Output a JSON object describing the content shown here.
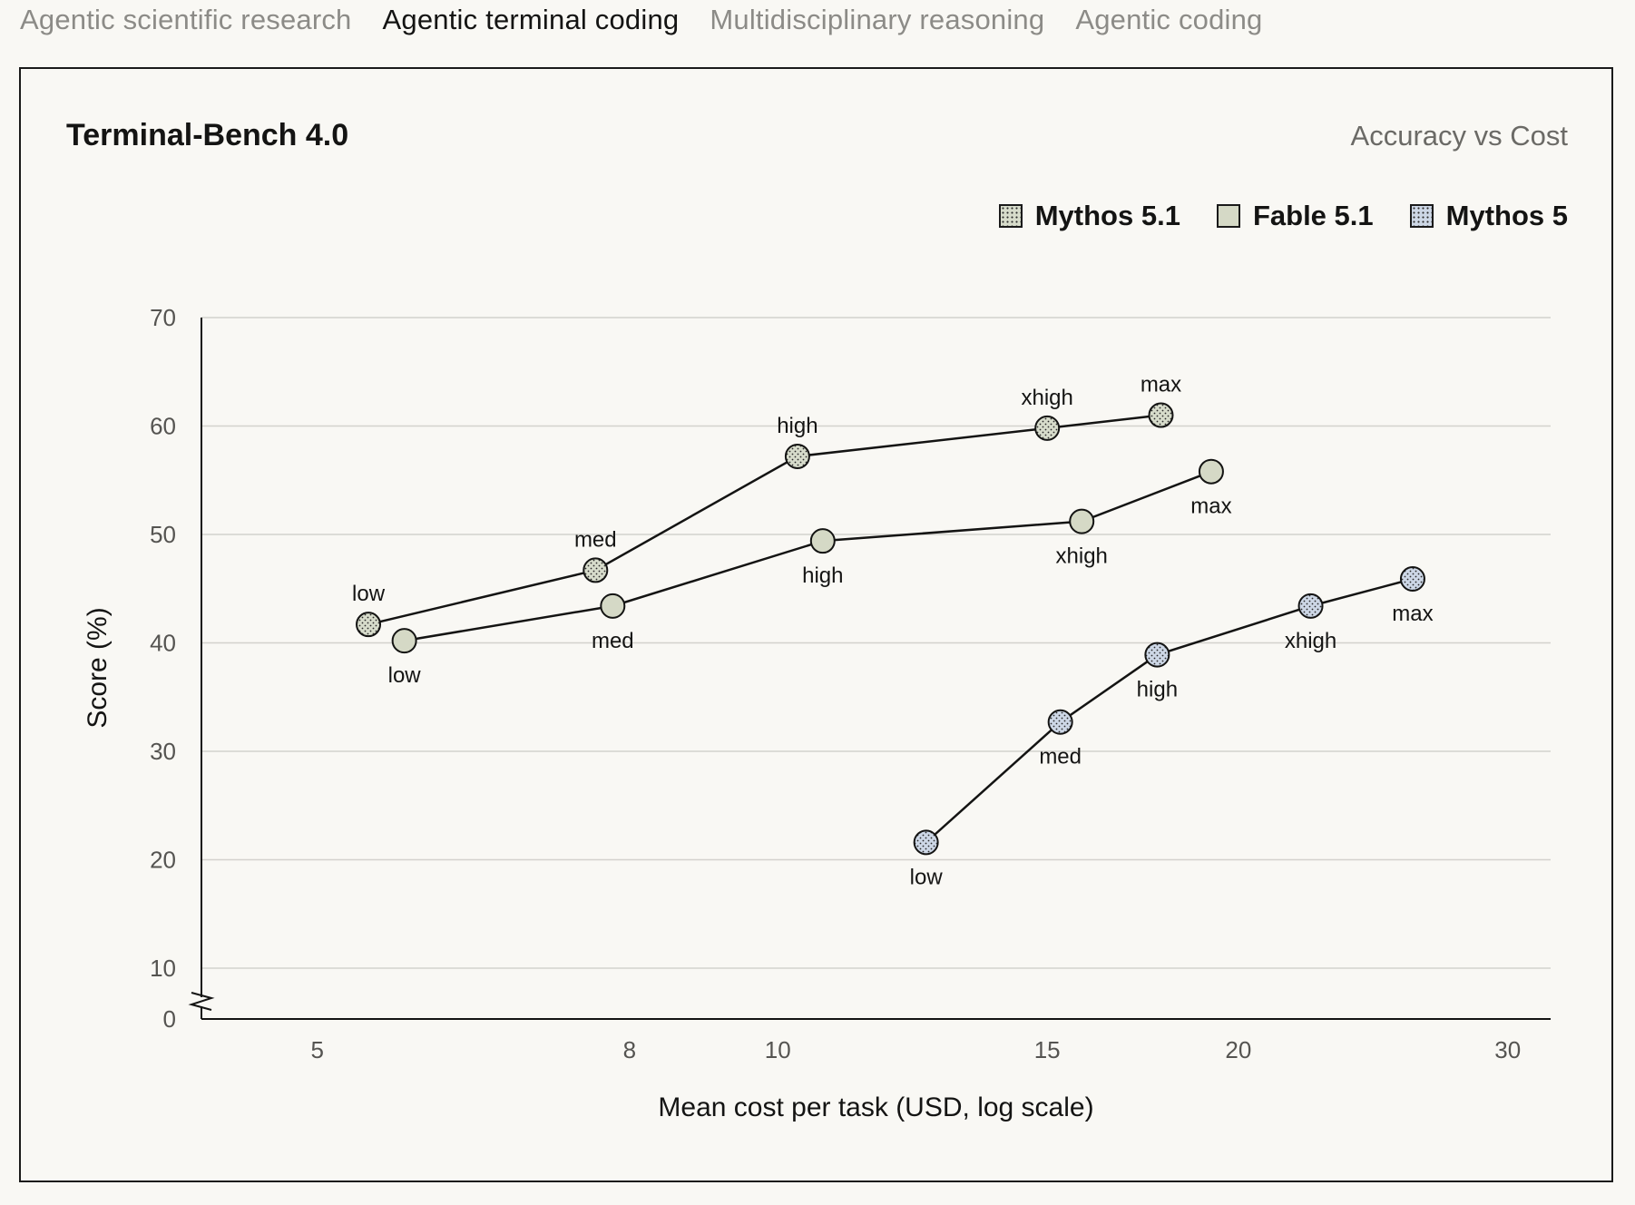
{
  "tabs": [
    {
      "label": "Agentic scientific research",
      "active": false
    },
    {
      "label": "Agentic terminal coding",
      "active": true
    },
    {
      "label": "Multidisciplinary reasoning",
      "active": false
    },
    {
      "label": "Agentic coding",
      "active": false
    }
  ],
  "chart_data": {
    "type": "line",
    "title": "Terminal-Bench 4.0",
    "subtitle": "Accuracy vs Cost",
    "xlabel": "Mean cost per task (USD, log scale)",
    "ylabel": "Score (%)",
    "x_scale": "log",
    "xlim": [
      4.2,
      32
    ],
    "ylim": [
      0,
      70
    ],
    "y_axis_break": "between 0 and 10",
    "x_ticks": [
      5,
      8,
      10,
      15,
      20,
      30
    ],
    "y_ticks": [
      0,
      10,
      20,
      30,
      40,
      50,
      60,
      70
    ],
    "grid": "horizontal",
    "legend_position": "top-right",
    "series": [
      {
        "name": "Mythos 5.1",
        "color": "#d7dccb",
        "pattern": "dots",
        "points": [
          {
            "label": "low",
            "x": 5.4,
            "y": 41.7
          },
          {
            "label": "med",
            "x": 7.6,
            "y": 46.7
          },
          {
            "label": "high",
            "x": 10.3,
            "y": 57.2
          },
          {
            "label": "xhigh",
            "x": 15.0,
            "y": 59.8
          },
          {
            "label": "max",
            "x": 17.8,
            "y": 61.0
          }
        ]
      },
      {
        "name": "Fable 5.1",
        "color": "#d5d9c6",
        "pattern": "solid",
        "points": [
          {
            "label": "low",
            "x": 5.7,
            "y": 40.2
          },
          {
            "label": "med",
            "x": 7.8,
            "y": 43.4
          },
          {
            "label": "high",
            "x": 10.7,
            "y": 49.4
          },
          {
            "label": "xhigh",
            "x": 15.8,
            "y": 51.2
          },
          {
            "label": "max",
            "x": 19.2,
            "y": 55.8
          }
        ]
      },
      {
        "name": "Mythos 5",
        "color": "#cdd7e6",
        "pattern": "dots",
        "points": [
          {
            "label": "low",
            "x": 12.5,
            "y": 21.6
          },
          {
            "label": "med",
            "x": 15.3,
            "y": 32.7
          },
          {
            "label": "high",
            "x": 17.7,
            "y": 38.9
          },
          {
            "label": "xhigh",
            "x": 22.3,
            "y": 43.4
          },
          {
            "label": "max",
            "x": 26.0,
            "y": 45.9
          }
        ]
      }
    ]
  }
}
